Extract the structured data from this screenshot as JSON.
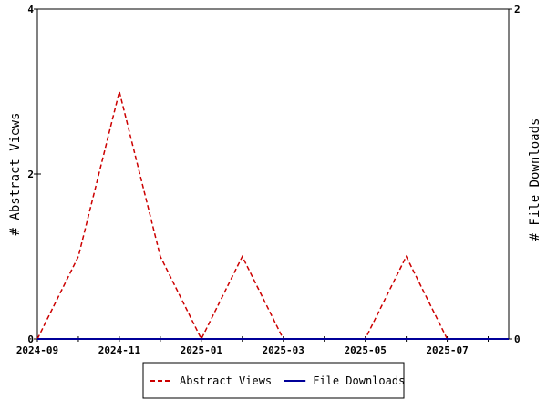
{
  "chart_data": {
    "type": "line",
    "x": [
      "2024-09",
      "2024-10",
      "2024-11",
      "2024-12",
      "2025-01",
      "2025-02",
      "2025-03",
      "2025-04",
      "2025-05",
      "2025-06",
      "2025-07",
      "2025-08"
    ],
    "x_tick_labels": [
      "2024-09",
      "2024-11",
      "2025-01",
      "2025-03",
      "2025-05",
      "2025-07"
    ],
    "series": [
      {
        "name": "Abstract Views",
        "axis": "left",
        "color": "#cc0000",
        "style": "dashed",
        "values": [
          0,
          1,
          3,
          1,
          0,
          1,
          0,
          0,
          0,
          1,
          0,
          0
        ]
      },
      {
        "name": "File Downloads",
        "axis": "right",
        "color": "#000099",
        "style": "solid",
        "values": [
          0,
          0,
          0,
          0,
          0,
          0,
          0,
          0,
          0,
          0,
          0,
          0
        ]
      }
    ],
    "ylabel_left": "# Abstract Views",
    "ylabel_right": "# File Downloads",
    "ylim_left": [
      0,
      4
    ],
    "ylim_right": [
      0,
      2
    ],
    "y_ticks_left": [
      "0",
      "2",
      "4"
    ],
    "y_ticks_right": [
      "0",
      "2"
    ],
    "legend_position": "bottom"
  }
}
